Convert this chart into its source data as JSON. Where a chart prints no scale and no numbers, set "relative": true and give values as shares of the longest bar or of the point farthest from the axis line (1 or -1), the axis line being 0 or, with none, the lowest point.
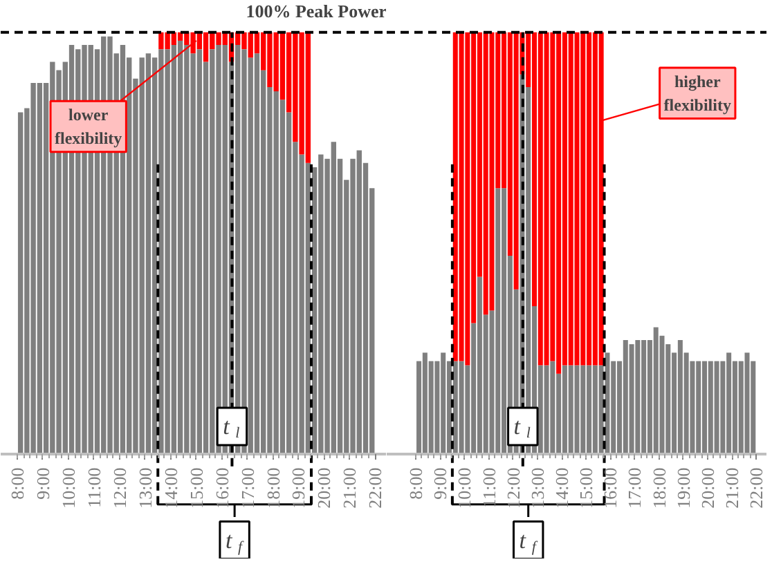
{
  "chart_data": [
    {
      "type": "bar",
      "stacked": true,
      "relative": true,
      "x": [
        8.125,
        8.375,
        8.625,
        8.875,
        9.125,
        9.375,
        9.625,
        9.875,
        10.125,
        10.375,
        10.625,
        10.875,
        11.125,
        11.375,
        11.625,
        11.875,
        12.125,
        12.375,
        12.625,
        12.875,
        13.125,
        13.375,
        13.625,
        13.875,
        14.125,
        14.375,
        14.625,
        14.875,
        15.125,
        15.375,
        15.625,
        15.875,
        16.125,
        16.375,
        16.625,
        16.875,
        17.125,
        17.375,
        17.625,
        17.875,
        18.125,
        18.375,
        18.625,
        18.875,
        19.125,
        19.375,
        19.625,
        19.875,
        20.125,
        20.375,
        20.625,
        20.875,
        21.125,
        21.375,
        21.625,
        21.875
      ],
      "series": [
        {
          "color": "#7f7f7f",
          "values": [
            0.81,
            0.82,
            0.88,
            0.88,
            0.88,
            0.93,
            0.91,
            0.93,
            0.97,
            0.96,
            0.97,
            0.97,
            0.96,
            0.99,
            0.99,
            0.95,
            0.97,
            0.94,
            0.89,
            0.94,
            0.95,
            0.94,
            0.96,
            0.96,
            0.97,
            0.98,
            0.97,
            0.95,
            0.96,
            0.93,
            0.96,
            0.97,
            0.97,
            0.93,
            0.97,
            0.96,
            0.94,
            0.95,
            0.91,
            0.87,
            0.86,
            0.84,
            0.81,
            0.74,
            0.71,
            0.69,
            0.68,
            0.71,
            0.7,
            0.74,
            0.7,
            0.65,
            0.7,
            0.72,
            0.69,
            0.63
          ]
        },
        {
          "color": "#ff0000",
          "values": [
            null,
            null,
            null,
            null,
            null,
            null,
            null,
            null,
            null,
            null,
            null,
            null,
            null,
            null,
            null,
            null,
            null,
            null,
            null,
            null,
            null,
            null,
            0.04,
            0.04,
            0.03,
            0.02,
            0.03,
            0.05,
            0.04,
            0.07,
            0.04,
            0.03,
            0.03,
            0.07,
            0.03,
            0.04,
            0.06,
            0.05,
            0.09,
            0.13,
            0.14,
            0.16,
            0.19,
            0.26,
            0.29,
            0.31,
            null,
            null,
            null,
            null,
            null,
            null,
            null,
            null,
            null,
            null
          ]
        }
      ],
      "xlim": [
        7.35,
        22.45
      ],
      "xticks": [
        {
          "value": 8,
          "label": "8:00"
        },
        {
          "value": 9,
          "label": "9:00"
        },
        {
          "value": 10,
          "label": "10:00"
        },
        {
          "value": 11,
          "label": "11:00"
        },
        {
          "value": 12,
          "label": "12:00"
        },
        {
          "value": 13,
          "label": "13:00"
        },
        {
          "value": 14,
          "label": "14:00"
        },
        {
          "value": 15,
          "label": "15:00"
        },
        {
          "value": 16,
          "label": "16:00"
        },
        {
          "value": 17,
          "label": "17:00"
        },
        {
          "value": 18,
          "label": "18:00"
        },
        {
          "value": 19,
          "label": "19:00"
        },
        {
          "value": 20,
          "label": "20:00"
        },
        {
          "value": 21,
          "label": "21:00"
        },
        {
          "value": 22,
          "label": "22:00"
        }
      ],
      "ref_lines": [
        {
          "axis": "y",
          "value": 1,
          "label": "100% Peak Power",
          "line_style": "dashed",
          "color": "#000000"
        },
        {
          "axis": "x",
          "value": 16.4,
          "label": "t$_{l}$",
          "line_style": "dashed",
          "color": "#000000"
        },
        {
          "axis": "x",
          "value": 13.5,
          "line_style": "dashed",
          "color": "#000000"
        },
        {
          "axis": "x",
          "value": 19.5,
          "line_style": "dashed",
          "color": "#000000"
        }
      ],
      "annotations": [
        {
          "text": "lower flexibility",
          "x": 15.0,
          "y": 0.98
        },
        "t$_{f}$"
      ]
    },
    {
      "type": "bar",
      "stacked": true,
      "relative": true,
      "x": [
        8.125,
        8.375,
        8.625,
        8.875,
        9.125,
        9.375,
        9.625,
        9.875,
        10.125,
        10.375,
        10.625,
        10.875,
        11.125,
        11.375,
        11.625,
        11.875,
        12.125,
        12.375,
        12.625,
        12.875,
        13.125,
        13.375,
        13.625,
        13.875,
        14.125,
        14.375,
        14.625,
        14.875,
        15.125,
        15.375,
        15.625,
        15.875,
        16.125,
        16.375,
        16.625,
        16.875,
        17.125,
        17.375,
        17.625,
        17.875,
        18.125,
        18.375,
        18.625,
        18.875,
        19.125,
        19.375,
        19.625,
        19.875,
        20.125,
        20.375,
        20.625,
        20.875,
        21.125,
        21.375,
        21.625,
        21.875
      ],
      "series": [
        {
          "color": "#7f7f7f",
          "values": [
            0.22,
            0.24,
            0.22,
            0.22,
            0.24,
            0.22,
            0.22,
            0.22,
            0.21,
            0.31,
            0.42,
            0.33,
            0.34,
            0.63,
            0.63,
            0.47,
            0.39,
            0.9,
            0.87,
            0.35,
            0.21,
            0.21,
            0.22,
            0.19,
            0.21,
            0.21,
            0.21,
            0.21,
            0.21,
            0.21,
            0.21,
            0.24,
            0.22,
            0.22,
            0.27,
            0.26,
            0.27,
            0.27,
            0.27,
            0.3,
            0.28,
            0.26,
            0.24,
            0.27,
            0.24,
            0.22,
            0.22,
            0.22,
            0.22,
            0.22,
            0.22,
            0.24,
            0.22,
            0.22,
            0.24,
            0.22
          ]
        },
        {
          "color": "#ff0000",
          "values": [
            null,
            null,
            null,
            null,
            null,
            null,
            0.78,
            0.78,
            0.79,
            0.69,
            0.58,
            0.67,
            0.66,
            0.37,
            0.37,
            0.53,
            0.61,
            0.1,
            0.13,
            0.65,
            0.79,
            0.79,
            0.78,
            0.81,
            0.79,
            0.79,
            0.79,
            0.79,
            0.79,
            0.79,
            0.79,
            null,
            null,
            null,
            null,
            null,
            null,
            null,
            null,
            null,
            null,
            null,
            null,
            null,
            null,
            null,
            null,
            null,
            null,
            null,
            null,
            null,
            null,
            null,
            null,
            null
          ]
        }
      ],
      "xlim": [
        6.8,
        22.45
      ],
      "xticks": [
        {
          "value": 8,
          "label": "8:00"
        },
        {
          "value": 9,
          "label": "9:00"
        },
        {
          "value": 10,
          "label": "10:00"
        },
        {
          "value": 11,
          "label": "11:00"
        },
        {
          "value": 12,
          "label": "12:00"
        },
        {
          "value": 13,
          "label": "13:00"
        },
        {
          "value": 14,
          "label": "14:00"
        },
        {
          "value": 15,
          "label": "15:00"
        },
        {
          "value": 16,
          "label": "16:00"
        },
        {
          "value": 17,
          "label": "17:00"
        },
        {
          "value": 18,
          "label": "18:00"
        },
        {
          "value": 19,
          "label": "19:00"
        },
        {
          "value": 20,
          "label": "20:00"
        },
        {
          "value": 21,
          "label": "21:00"
        },
        {
          "value": 22,
          "label": "22:00"
        }
      ],
      "ref_lines": [
        {
          "axis": "y",
          "value": 1,
          "line_style": "dashed",
          "color": "#000000"
        },
        {
          "axis": "x",
          "value": 12.4,
          "label": "t$_{l}$",
          "line_style": "dashed",
          "color": "#000000"
        },
        {
          "axis": "x",
          "value": 9.5,
          "line_style": "dashed",
          "color": "#000000"
        },
        {
          "axis": "x",
          "value": 15.75,
          "line_style": "dashed",
          "color": "#000000"
        }
      ],
      "annotations": [
        {
          "text": "higher flexibility",
          "x": 15.6,
          "y": 0.79
        },
        "t$_{f}$"
      ]
    }
  ]
}
